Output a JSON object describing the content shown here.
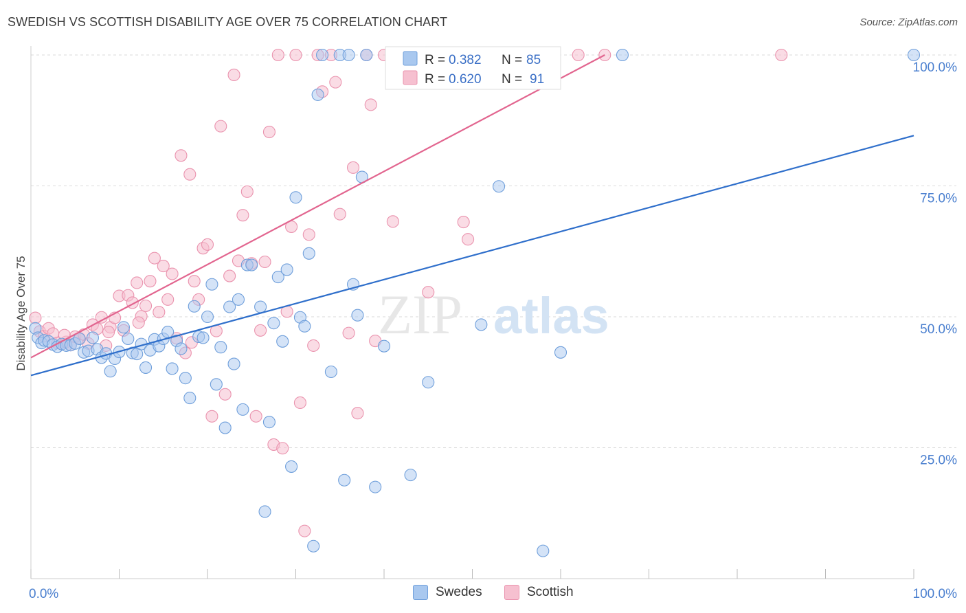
{
  "header": {
    "title": "SWEDISH VS SCOTTISH DISABILITY AGE OVER 75 CORRELATION CHART",
    "source": "Source: ZipAtlas.com"
  },
  "watermark": {
    "zip": "ZIP",
    "atlas": "atlas"
  },
  "colors": {
    "swedes_fill": "#a9c8ef",
    "swedes_stroke": "#6f9fdb",
    "swedes_line": "#2f6fcb",
    "scottish_fill": "#f6c0d0",
    "scottish_stroke": "#ea93ae",
    "scottish_line": "#e2658f",
    "tick_label": "#4a7fcf",
    "grid": "#d9d9d9"
  },
  "legend_box": {
    "rows": [
      {
        "r_label": "R =",
        "r_value": "0.382",
        "n_label": "N =",
        "n_value": "85"
      },
      {
        "r_label": "R =",
        "r_value": "0.620",
        "n_label": "N =",
        "n_value": "91"
      }
    ]
  },
  "bottom_legend": [
    {
      "label": "Swedes"
    },
    {
      "label": "Scottish"
    }
  ],
  "chart_data": {
    "type": "scatter",
    "title": "SWEDISH VS SCOTTISH DISABILITY AGE OVER 75 CORRELATION CHART",
    "xlabel": "",
    "ylabel": "Disability Age Over 75",
    "xlim": [
      0,
      100
    ],
    "ylim": [
      0,
      100
    ],
    "x_tick_labels": [
      "0.0%",
      "100.0%"
    ],
    "y_tick_labels": [
      "25.0%",
      "50.0%",
      "75.0%",
      "100.0%"
    ],
    "y_ticks": [
      25,
      50,
      75,
      100
    ],
    "grid": "horizontal dashed",
    "legend_placement": "bottom-center",
    "series": [
      {
        "name": "Swedes",
        "r": 0.382,
        "n": 85,
        "trend": {
          "x": [
            0,
            100
          ],
          "y": [
            38.8,
            84.6
          ]
        },
        "points": [
          [
            0.5,
            47.8
          ],
          [
            0.8,
            46.0
          ],
          [
            1.2,
            45.0
          ],
          [
            1.5,
            45.5
          ],
          [
            2.0,
            45.3
          ],
          [
            2.5,
            44.7
          ],
          [
            3.0,
            44.3
          ],
          [
            3.5,
            44.8
          ],
          [
            4.0,
            44.5
          ],
          [
            4.5,
            44.6
          ],
          [
            5.0,
            44.9
          ],
          [
            5.5,
            45.8
          ],
          [
            6.0,
            43.2
          ],
          [
            6.5,
            43.5
          ],
          [
            7.0,
            46.0
          ],
          [
            7.5,
            43.8
          ],
          [
            8.0,
            42.2
          ],
          [
            8.5,
            43.0
          ],
          [
            9.0,
            39.6
          ],
          [
            9.5,
            42.0
          ],
          [
            10.0,
            43.3
          ],
          [
            10.5,
            48.0
          ],
          [
            11.0,
            45.8
          ],
          [
            11.5,
            43.1
          ],
          [
            12.0,
            42.9
          ],
          [
            12.5,
            44.8
          ],
          [
            13.0,
            40.3
          ],
          [
            13.5,
            43.6
          ],
          [
            14.0,
            45.7
          ],
          [
            14.5,
            44.4
          ],
          [
            15.0,
            45.8
          ],
          [
            15.5,
            47.1
          ],
          [
            16.0,
            40.1
          ],
          [
            16.5,
            45.4
          ],
          [
            17.0,
            43.9
          ],
          [
            17.5,
            38.3
          ],
          [
            18.0,
            34.5
          ],
          [
            18.5,
            52.0
          ],
          [
            19.0,
            46.2
          ],
          [
            19.5,
            46.0
          ],
          [
            20.0,
            50.0
          ],
          [
            20.5,
            56.2
          ],
          [
            21.0,
            37.1
          ],
          [
            21.5,
            44.2
          ],
          [
            22.0,
            28.8
          ],
          [
            22.5,
            51.9
          ],
          [
            23.0,
            41.0
          ],
          [
            23.5,
            53.3
          ],
          [
            24.0,
            32.3
          ],
          [
            24.5,
            59.9
          ],
          [
            25.0,
            59.9
          ],
          [
            26.0,
            51.9
          ],
          [
            26.5,
            12.8
          ],
          [
            27.0,
            29.9
          ],
          [
            27.5,
            48.8
          ],
          [
            28.0,
            57.6
          ],
          [
            28.5,
            45.3
          ],
          [
            29.0,
            59.0
          ],
          [
            29.5,
            21.4
          ],
          [
            30.0,
            72.8
          ],
          [
            30.5,
            49.9
          ],
          [
            31.0,
            48.2
          ],
          [
            31.5,
            62.1
          ],
          [
            32.0,
            6.2
          ],
          [
            32.5,
            92.4
          ],
          [
            33.0,
            100.0
          ],
          [
            34.0,
            39.5
          ],
          [
            35.0,
            100.0
          ],
          [
            35.5,
            18.8
          ],
          [
            36.0,
            100.0
          ],
          [
            36.5,
            56.2
          ],
          [
            37.0,
            50.3
          ],
          [
            37.5,
            76.7
          ],
          [
            38.0,
            100.0
          ],
          [
            39.0,
            17.5
          ],
          [
            40.0,
            44.4
          ],
          [
            41.0,
            100.0
          ],
          [
            43.0,
            19.8
          ],
          [
            45.0,
            37.5
          ],
          [
            51.0,
            48.5
          ],
          [
            53.0,
            74.9
          ],
          [
            58.0,
            5.3
          ],
          [
            60.0,
            43.2
          ],
          [
            67.0,
            100.0
          ],
          [
            100.0,
            100.0
          ]
        ]
      },
      {
        "name": "Scottish",
        "r": 0.62,
        "n": 91,
        "trend": {
          "x": [
            0,
            65
          ],
          "y": [
            42.2,
            100.0
          ]
        },
        "points": [
          [
            0.5,
            49.8
          ],
          [
            1.0,
            47.2
          ],
          [
            1.5,
            46.3
          ],
          [
            2.0,
            47.8
          ],
          [
            2.5,
            46.8
          ],
          [
            3.0,
            45.0
          ],
          [
            3.5,
            44.8
          ],
          [
            4.0,
            45.2
          ],
          [
            4.5,
            44.6
          ],
          [
            5.0,
            46.2
          ],
          [
            5.5,
            45.9
          ],
          [
            6.0,
            46.6
          ],
          [
            6.5,
            44.9
          ],
          [
            7.0,
            48.5
          ],
          [
            7.5,
            47.7
          ],
          [
            8.0,
            49.9
          ],
          [
            8.5,
            44.5
          ],
          [
            9.0,
            48.0
          ],
          [
            9.5,
            49.8
          ],
          [
            10.0,
            54.0
          ],
          [
            10.5,
            47.4
          ],
          [
            11.0,
            54.1
          ],
          [
            11.5,
            52.7
          ],
          [
            12.0,
            56.5
          ],
          [
            12.5,
            50.1
          ],
          [
            13.0,
            52.1
          ],
          [
            13.5,
            56.8
          ],
          [
            14.0,
            61.2
          ],
          [
            14.5,
            50.9
          ],
          [
            15.0,
            59.7
          ],
          [
            15.5,
            53.3
          ],
          [
            16.0,
            58.2
          ],
          [
            16.5,
            45.9
          ],
          [
            17.0,
            80.8
          ],
          [
            17.5,
            43.1
          ],
          [
            18.0,
            77.2
          ],
          [
            18.5,
            56.8
          ],
          [
            19.0,
            53.3
          ],
          [
            19.5,
            63.1
          ],
          [
            20.0,
            63.8
          ],
          [
            20.5,
            31.0
          ],
          [
            21.0,
            47.3
          ],
          [
            21.5,
            86.4
          ],
          [
            22.0,
            35.2
          ],
          [
            22.5,
            57.8
          ],
          [
            23.0,
            96.2
          ],
          [
            23.5,
            60.7
          ],
          [
            24.0,
            69.4
          ],
          [
            24.5,
            73.9
          ],
          [
            25.0,
            60.2
          ],
          [
            25.5,
            31.0
          ],
          [
            26.0,
            47.4
          ],
          [
            26.5,
            60.5
          ],
          [
            27.0,
            85.3
          ],
          [
            27.5,
            25.6
          ],
          [
            28.0,
            100.0
          ],
          [
            28.5,
            24.9
          ],
          [
            29.0,
            51.0
          ],
          [
            29.5,
            67.2
          ],
          [
            30.0,
            100.0
          ],
          [
            30.5,
            33.6
          ],
          [
            31.0,
            9.1
          ],
          [
            31.5,
            65.7
          ],
          [
            32.0,
            44.5
          ],
          [
            32.5,
            100.0
          ],
          [
            33.0,
            93.0
          ],
          [
            34.0,
            100.0
          ],
          [
            34.5,
            94.8
          ],
          [
            35.0,
            69.6
          ],
          [
            36.0,
            46.9
          ],
          [
            36.5,
            78.5
          ],
          [
            37.0,
            31.6
          ],
          [
            38.0,
            100.0
          ],
          [
            38.5,
            90.5
          ],
          [
            39.0,
            45.4
          ],
          [
            40.0,
            100.0
          ],
          [
            41.0,
            68.2
          ],
          [
            42.0,
            100.0
          ],
          [
            45.0,
            54.7
          ],
          [
            48.0,
            100.0
          ],
          [
            49.0,
            68.1
          ],
          [
            49.5,
            64.8
          ],
          [
            52.0,
            100.0
          ],
          [
            58.0,
            100.0
          ],
          [
            62.0,
            100.0
          ],
          [
            65.0,
            100.0
          ],
          [
            85.0,
            100.0
          ],
          [
            3.8,
            46.5
          ],
          [
            8.8,
            47.1
          ],
          [
            12.2,
            48.9
          ],
          [
            18.2,
            45.1
          ]
        ]
      }
    ]
  }
}
